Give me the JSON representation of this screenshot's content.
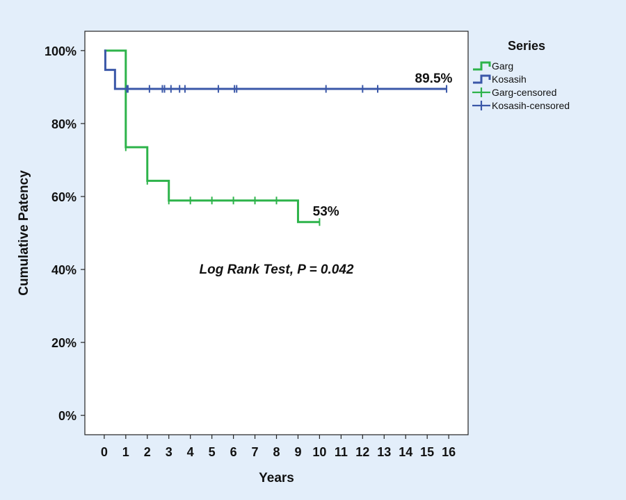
{
  "chart_data": {
    "type": "line",
    "subtype": "kaplan-meier step",
    "xlabel": "Years",
    "ylabel": "Cumulative Patency",
    "xlim": [
      -0.9,
      16.9
    ],
    "ylim": [
      -5.3,
      105.3
    ],
    "x_ticks": [
      0,
      1,
      2,
      3,
      4,
      5,
      6,
      7,
      8,
      9,
      10,
      11,
      12,
      13,
      14,
      15,
      16
    ],
    "y_ticks": [
      0,
      20,
      40,
      60,
      80,
      100
    ],
    "y_tick_labels": [
      "0%",
      "20%",
      "40%",
      "60%",
      "80%",
      "100%"
    ],
    "grid": false,
    "legend": {
      "title": "Series",
      "placement": "right",
      "entries": [
        "Garg",
        "Kosasih",
        "Garg-censored",
        "Kosasih-censored"
      ]
    },
    "series": [
      {
        "name": "Garg",
        "color": "#2db34a",
        "steps": [
          [
            0,
            100
          ],
          [
            1,
            73.5
          ],
          [
            2,
            64.3
          ],
          [
            3,
            58.9
          ],
          [
            9,
            53
          ],
          [
            10,
            53
          ]
        ],
        "censored": [
          [
            1,
            73.5
          ],
          [
            2,
            64.3
          ],
          [
            3,
            58.9
          ],
          [
            4,
            58.9
          ],
          [
            5,
            58.9
          ],
          [
            6,
            58.9
          ],
          [
            7,
            58.9
          ],
          [
            8,
            58.9
          ],
          [
            10,
            53
          ]
        ]
      },
      {
        "name": "Kosasih",
        "color": "#3a57a8",
        "steps": [
          [
            0,
            100
          ],
          [
            0.05,
            94.7
          ],
          [
            0.5,
            89.5
          ],
          [
            15.9,
            89.5
          ]
        ],
        "censored": [
          [
            1.05,
            89.5
          ],
          [
            1.1,
            89.5
          ],
          [
            2.1,
            89.5
          ],
          [
            2.7,
            89.5
          ],
          [
            2.8,
            89.5
          ],
          [
            3.1,
            89.5
          ],
          [
            3.5,
            89.5
          ],
          [
            3.75,
            89.5
          ],
          [
            5.3,
            89.5
          ],
          [
            6.05,
            89.5
          ],
          [
            6.15,
            89.5
          ],
          [
            10.3,
            89.5
          ],
          [
            12,
            89.5
          ],
          [
            12.7,
            89.5
          ],
          [
            15.9,
            89.5
          ]
        ]
      }
    ],
    "annotations": [
      {
        "text": "89.5%",
        "x": 15.3,
        "y": 89.5
      },
      {
        "text": "53%",
        "x": 10.3,
        "y": 53
      },
      {
        "text": "Log Rank Test, P = 0.042",
        "x": 8,
        "y": 40,
        "italic": true
      }
    ]
  }
}
